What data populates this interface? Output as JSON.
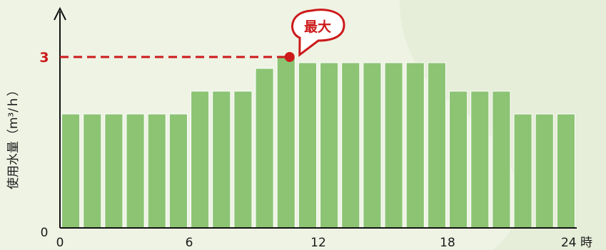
{
  "chart_data": {
    "type": "bar",
    "ylabel": "使用水量（m³/ｈ）",
    "x_unit": "時",
    "x_ticks": [
      "0",
      "6",
      "12",
      "18",
      "24"
    ],
    "y_ticks": [
      "0",
      "3"
    ],
    "ylim": [
      0,
      3.2
    ],
    "xlim": [
      0,
      24
    ],
    "grid": false,
    "bar_color": "#8cc474",
    "max_line_color": "#cc1a1a",
    "max_value": 3,
    "max_hour": 10.5,
    "max_label": "最大",
    "hours": [
      0.5,
      1.5,
      2.5,
      3.5,
      4.5,
      5.5,
      6.5,
      7.5,
      8.5,
      9.5,
      10.5,
      11.5,
      12.5,
      13.5,
      14.5,
      15.5,
      16.5,
      17.5,
      18.5,
      19.5,
      20.5,
      21.5,
      22.5,
      23.5
    ],
    "values": [
      2.0,
      2.0,
      2.0,
      2.0,
      2.0,
      2.0,
      2.4,
      2.4,
      2.4,
      2.8,
      3.0,
      2.9,
      2.9,
      2.9,
      2.9,
      2.9,
      2.9,
      2.9,
      2.4,
      2.4,
      2.4,
      2.0,
      2.0,
      2.0
    ]
  }
}
